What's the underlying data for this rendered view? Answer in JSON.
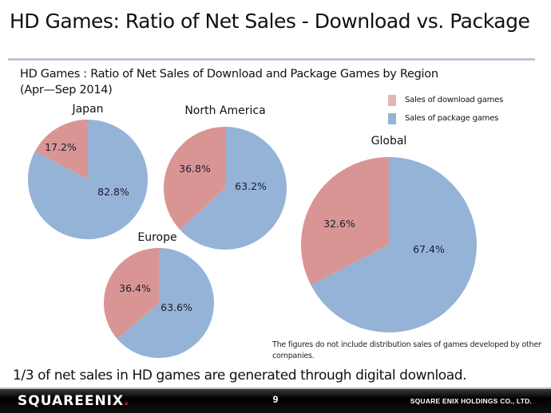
{
  "slide": {
    "title": "HD Games: Ratio of Net Sales - Download vs. Package",
    "subtitle_line1": "HD Games : Ratio of Net Sales of Download and Package Games by Region",
    "subtitle_line2": "(Apr—Sep 2014)",
    "note": "The figures do not include distribution sales of games developed by other companies.",
    "conclusion": "1/3 of net sales in HD games are generated through digital download.",
    "footer": {
      "logo_text_a": "SQUARE",
      "logo_text_b": "ENIX",
      "logo_mark": ".",
      "page_number": "9",
      "company": "SQUARE ENIX HOLDINGS CO., LTD."
    }
  },
  "colors": {
    "download": "#d99594",
    "package": "#95b3d7",
    "title_rule": "#c9c0d9"
  },
  "chart_data": {
    "type": "pie",
    "title": "HD Games : Ratio of Net Sales of Download and Package Games by Region (Apr—Sep 2014)",
    "legend": [
      "Sales of download games",
      "Sales of package games"
    ],
    "legend_position": "top-right",
    "charts": [
      {
        "name": "Japan",
        "series": [
          {
            "name": "Sales of download games",
            "value": 17.2,
            "label": "17.2%"
          },
          {
            "name": "Sales of package games",
            "value": 82.8,
            "label": "82.8%"
          }
        ]
      },
      {
        "name": "North America",
        "series": [
          {
            "name": "Sales of download games",
            "value": 36.8,
            "label": "36.8%"
          },
          {
            "name": "Sales of package games",
            "value": 63.2,
            "label": "63.2%"
          }
        ]
      },
      {
        "name": "Europe",
        "series": [
          {
            "name": "Sales of download games",
            "value": 36.4,
            "label": "36.4%"
          },
          {
            "name": "Sales of package games",
            "value": 63.6,
            "label": "63.6%"
          }
        ]
      },
      {
        "name": "Global",
        "series": [
          {
            "name": "Sales of download games",
            "value": 32.6,
            "label": "32.6%"
          },
          {
            "name": "Sales of package games",
            "value": 67.4,
            "label": "67.4%"
          }
        ]
      }
    ]
  }
}
